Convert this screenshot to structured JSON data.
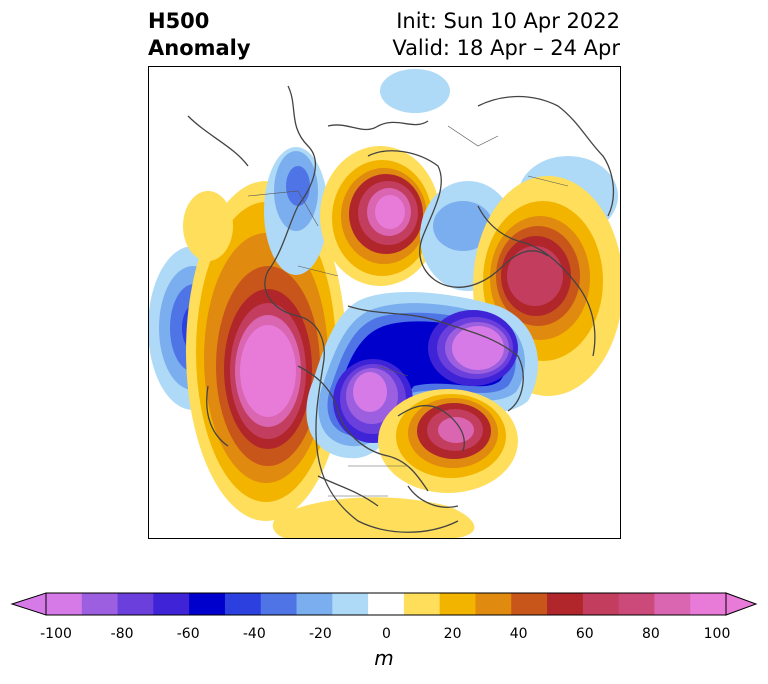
{
  "title": {
    "left_line1": "H500",
    "left_line2": "Anomaly",
    "init": "Init: Sun 10 Apr 2022",
    "valid": "Valid: 18 Apr – 24 Apr"
  },
  "colorbar": {
    "unit": "m",
    "ticks": [
      "-100",
      "-80",
      "-60",
      "-40",
      "-20",
      "0",
      "20",
      "40",
      "60",
      "80",
      "100"
    ],
    "colors": [
      "#d67ae8",
      "#9b5fe0",
      "#6a3fdc",
      "#3f23d6",
      "#0000cc",
      "#2c3fdf",
      "#4e74e6",
      "#7aaeee",
      "#aedaf7",
      "#ffffff",
      "#fede5a",
      "#f3b400",
      "#e08a10",
      "#c8561a",
      "#b0262b",
      "#c23d5e",
      "#cc4a7a",
      "#da65b0",
      "#e87ad8"
    ],
    "under_color": "#d67ae8",
    "over_color": "#e87ad8"
  },
  "map": {
    "anomalies": [
      {
        "name": "pacific-low",
        "value": -60
      },
      {
        "name": "west-coast-high",
        "value": 100
      },
      {
        "name": "central-canada-low",
        "value": -100
      },
      {
        "name": "polar-low",
        "value": -100
      },
      {
        "name": "atlantic-high",
        "value": 80
      },
      {
        "name": "siberia-high",
        "value": 100
      },
      {
        "name": "scandinavia-high",
        "value": 80
      },
      {
        "name": "asia-low",
        "value": -40
      }
    ]
  }
}
